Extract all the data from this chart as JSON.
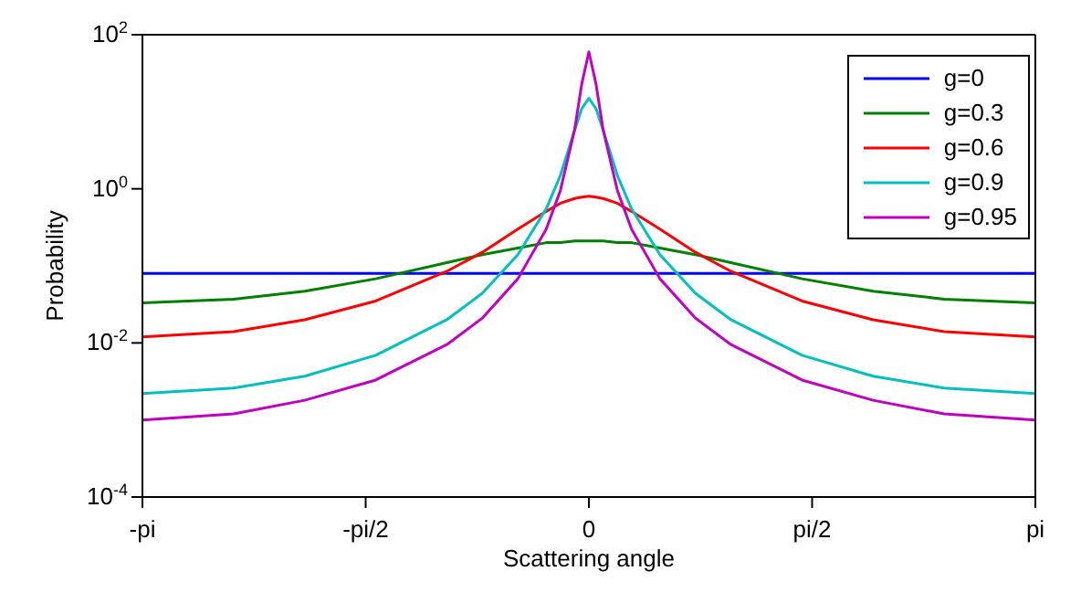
{
  "chart_data": {
    "type": "line",
    "xlabel": "Scattering angle",
    "ylabel": "Probability",
    "x": [
      -3.1416,
      -2.5,
      -2,
      -1.5,
      -1,
      -0.75,
      -0.5,
      -0.3,
      -0.2,
      -0.1,
      -0.05,
      0,
      0.05,
      0.1,
      0.2,
      0.3,
      0.5,
      0.75,
      1,
      1.5,
      2,
      2.5,
      3.1416
    ],
    "series": [
      {
        "name": "g=0",
        "color": "#0000ff",
        "values": [
          0.08,
          0.08,
          0.08,
          0.08,
          0.08,
          0.08,
          0.08,
          0.08,
          0.08,
          0.08,
          0.08,
          0.08,
          0.08,
          0.08,
          0.08,
          0.08,
          0.08,
          0.08,
          0.08,
          0.08,
          0.08,
          0.08,
          0.08
        ]
      },
      {
        "name": "g=0.3",
        "color": "#008000",
        "values": [
          0.033,
          0.037,
          0.047,
          0.068,
          0.11,
          0.14,
          0.17,
          0.2,
          0.2,
          0.21,
          0.21,
          0.21,
          0.21,
          0.21,
          0.2,
          0.2,
          0.17,
          0.14,
          0.11,
          0.068,
          0.047,
          0.037,
          0.033
        ]
      },
      {
        "name": "g=0.6",
        "color": "#ff0000",
        "values": [
          0.012,
          0.014,
          0.02,
          0.035,
          0.085,
          0.15,
          0.3,
          0.51,
          0.65,
          0.75,
          0.78,
          0.8,
          0.78,
          0.75,
          0.65,
          0.51,
          0.3,
          0.15,
          0.085,
          0.035,
          0.02,
          0.014,
          0.012
        ]
      },
      {
        "name": "g=0.9",
        "color": "#00bfbf",
        "values": [
          0.0022,
          0.0026,
          0.0037,
          0.0069,
          0.02,
          0.044,
          0.14,
          0.55,
          1.5,
          5.8,
          11,
          15,
          11,
          5.8,
          1.5,
          0.55,
          0.14,
          0.044,
          0.02,
          0.0069,
          0.0037,
          0.0026,
          0.0022
        ]
      },
      {
        "name": "g=0.95",
        "color": "#bf00bf",
        "values": [
          0.001,
          0.0012,
          0.0018,
          0.0033,
          0.0095,
          0.021,
          0.068,
          0.3,
          0.96,
          5.9,
          23,
          60,
          23,
          5.9,
          0.96,
          0.3,
          0.068,
          0.021,
          0.0095,
          0.0033,
          0.0018,
          0.0012,
          0.001
        ]
      }
    ],
    "xlim": [
      -3.1416,
      3.1416
    ],
    "xticks": [
      {
        "value": -3.1416,
        "label": "-pi"
      },
      {
        "value": -1.5708,
        "label": "-pi/2"
      },
      0,
      {
        "value": 1.5708,
        "label": "pi/2"
      },
      {
        "value": 3.1416,
        "label": "pi"
      }
    ],
    "log": "y",
    "ylim": [
      0.0001,
      100
    ],
    "yticks": [
      {
        "value": 0.0001,
        "label": "10$^{-4}$"
      },
      {
        "value": 0.01,
        "label": "10$^{-2}$"
      },
      {
        "value": 1,
        "label": "10$^{0}$"
      },
      {
        "value": 100,
        "label": "10$^{2}$"
      }
    ],
    "legend": "top right",
    "marker": "none",
    "line_style": "solid"
  }
}
